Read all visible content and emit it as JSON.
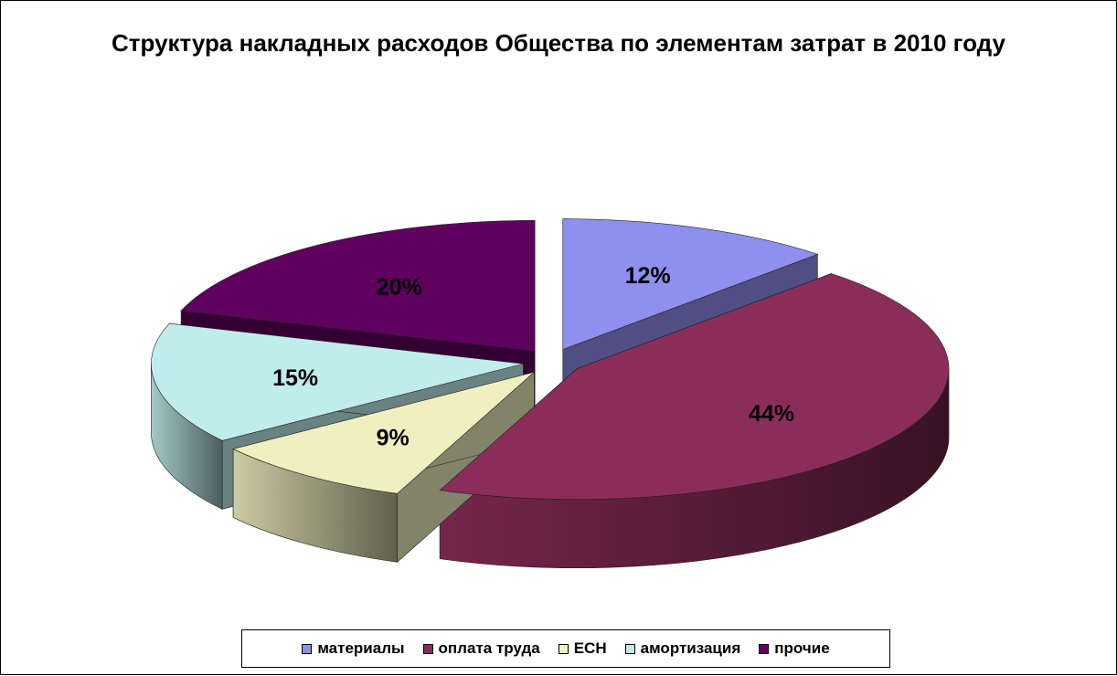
{
  "chart_data": {
    "type": "pie",
    "title": "Структура накладных расходов Общества по элементам затрат в 2010 году",
    "unit": "%",
    "legend_position": "bottom",
    "slices": [
      {
        "name": "материалы",
        "value": 12,
        "label": "12%",
        "color": "#8f8fef"
      },
      {
        "name": "оплата труда",
        "value": 44,
        "label": "44%",
        "color": "#8b2d5b"
      },
      {
        "name": "ЕСН",
        "value": 9,
        "label": "9%",
        "color": "#efefc0"
      },
      {
        "name": "амортизация",
        "value": 15,
        "label": "15%",
        "color": "#c0ecec"
      },
      {
        "name": "прочие",
        "value": 20,
        "label": "20%",
        "color": "#5f005f"
      }
    ]
  }
}
